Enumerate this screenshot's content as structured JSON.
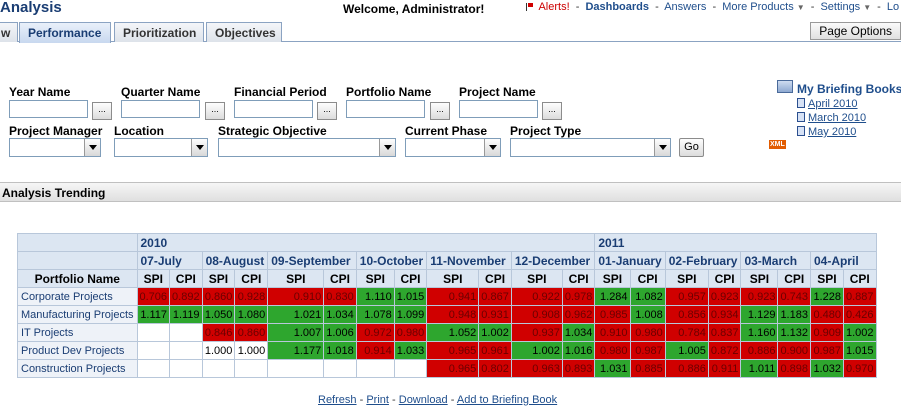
{
  "app": {
    "title": "Analysis"
  },
  "header": {
    "welcome": "Welcome, Administrator!",
    "alerts": "Alerts!",
    "dashboards": "Dashboards",
    "answers": "Answers",
    "more_products": "More Products",
    "settings": "Settings",
    "logout_partial": "Lo",
    "separator": "-"
  },
  "tabs": [
    {
      "label": "w"
    },
    {
      "label": "Performance"
    },
    {
      "label": "Prioritization"
    },
    {
      "label": "Objectives"
    }
  ],
  "page_options": "Page Options",
  "prompts": {
    "year_name": "Year Name",
    "quarter_name": "Quarter Name",
    "financial_period": "Financial Period",
    "portfolio_name": "Portfolio Name",
    "project_name": "Project Name",
    "project_manager": "Project Manager",
    "location": "Location",
    "strategic_objective": "Strategic Objective",
    "current_phase": "Current Phase",
    "project_type": "Project Type",
    "browse": "...",
    "go": "Go"
  },
  "briefing": {
    "title": "My Briefing Books",
    "items": [
      "April 2010",
      "March 2010",
      "May 2010"
    ],
    "xml_badge": "XML"
  },
  "section": {
    "title": "Analysis Trending"
  },
  "pivot": {
    "years": [
      {
        "label": "2010",
        "span": 12
      },
      {
        "label": "2011",
        "span": 8
      }
    ],
    "periods": [
      "07-July",
      "08-August",
      "09-September",
      "10-October",
      "11-November",
      "12-December",
      "01-January",
      "02-February",
      "03-March",
      "04-April"
    ],
    "measures": [
      "SPI",
      "CPI"
    ],
    "row_header": "Portfolio Name",
    "rows": [
      {
        "name": "Corporate Projects",
        "cells": [
          {
            "v": "0.706",
            "c": "red"
          },
          {
            "v": "0.892",
            "c": "red"
          },
          {
            "v": "0.860",
            "c": "red"
          },
          {
            "v": "0.928",
            "c": "red"
          },
          {
            "v": "0.910",
            "c": "red"
          },
          {
            "v": "0.830",
            "c": "red"
          },
          {
            "v": "1.110",
            "c": "green"
          },
          {
            "v": "1.015",
            "c": "green"
          },
          {
            "v": "0.941",
            "c": "red"
          },
          {
            "v": "0.867",
            "c": "red"
          },
          {
            "v": "0.922",
            "c": "red"
          },
          {
            "v": "0.978",
            "c": "red"
          },
          {
            "v": "1.284",
            "c": "green"
          },
          {
            "v": "1.082",
            "c": "green"
          },
          {
            "v": "0.957",
            "c": "red"
          },
          {
            "v": "0.923",
            "c": "red"
          },
          {
            "v": "0.923",
            "c": "red"
          },
          {
            "v": "0.743",
            "c": "red"
          },
          {
            "v": "1.228",
            "c": "green"
          },
          {
            "v": "0.887",
            "c": "red"
          }
        ]
      },
      {
        "name": "Manufacturing Projects",
        "cells": [
          {
            "v": "1.117",
            "c": "green"
          },
          {
            "v": "1.119",
            "c": "green"
          },
          {
            "v": "1.050",
            "c": "green"
          },
          {
            "v": "1.080",
            "c": "green"
          },
          {
            "v": "1.021",
            "c": "green"
          },
          {
            "v": "1.034",
            "c": "green"
          },
          {
            "v": "1.078",
            "c": "green"
          },
          {
            "v": "1.099",
            "c": "green"
          },
          {
            "v": "0.948",
            "c": "red"
          },
          {
            "v": "0.931",
            "c": "red"
          },
          {
            "v": "0.908",
            "c": "red"
          },
          {
            "v": "0.962",
            "c": "red"
          },
          {
            "v": "0.985",
            "c": "red"
          },
          {
            "v": "1.008",
            "c": "green"
          },
          {
            "v": "0.856",
            "c": "red"
          },
          {
            "v": "0.934",
            "c": "red"
          },
          {
            "v": "1.129",
            "c": "green"
          },
          {
            "v": "1.183",
            "c": "green"
          },
          {
            "v": "0.480",
            "c": "red"
          },
          {
            "v": "0.426",
            "c": "red"
          }
        ]
      },
      {
        "name": "IT Projects",
        "cells": [
          {
            "v": "",
            "c": "empty"
          },
          {
            "v": "",
            "c": "empty"
          },
          {
            "v": "0.846",
            "c": "red"
          },
          {
            "v": "0.860",
            "c": "red"
          },
          {
            "v": "1.007",
            "c": "green"
          },
          {
            "v": "1.006",
            "c": "green"
          },
          {
            "v": "0.972",
            "c": "red"
          },
          {
            "v": "0.980",
            "c": "red"
          },
          {
            "v": "1.052",
            "c": "green"
          },
          {
            "v": "1.002",
            "c": "green"
          },
          {
            "v": "0.937",
            "c": "red"
          },
          {
            "v": "1.034",
            "c": "green"
          },
          {
            "v": "0.910",
            "c": "red"
          },
          {
            "v": "0.980",
            "c": "red"
          },
          {
            "v": "0.784",
            "c": "red"
          },
          {
            "v": "0.837",
            "c": "red"
          },
          {
            "v": "1.160",
            "c": "green"
          },
          {
            "v": "1.132",
            "c": "green"
          },
          {
            "v": "0.909",
            "c": "red"
          },
          {
            "v": "1.002",
            "c": "green"
          }
        ]
      },
      {
        "name": "Product Dev Projects",
        "cells": [
          {
            "v": "",
            "c": "empty"
          },
          {
            "v": "",
            "c": "empty"
          },
          {
            "v": "1.000",
            "c": "empty"
          },
          {
            "v": "1.000",
            "c": "empty"
          },
          {
            "v": "1.177",
            "c": "green"
          },
          {
            "v": "1.018",
            "c": "green"
          },
          {
            "v": "0.914",
            "c": "red"
          },
          {
            "v": "1.033",
            "c": "green"
          },
          {
            "v": "0.965",
            "c": "red"
          },
          {
            "v": "0.961",
            "c": "red"
          },
          {
            "v": "1.002",
            "c": "green"
          },
          {
            "v": "1.016",
            "c": "green"
          },
          {
            "v": "0.980",
            "c": "red"
          },
          {
            "v": "0.987",
            "c": "red"
          },
          {
            "v": "1.005",
            "c": "green"
          },
          {
            "v": "0.872",
            "c": "red"
          },
          {
            "v": "0.886",
            "c": "red"
          },
          {
            "v": "0.900",
            "c": "red"
          },
          {
            "v": "0.987",
            "c": "red"
          },
          {
            "v": "1.015",
            "c": "green"
          }
        ]
      },
      {
        "name": "Construction Projects",
        "cells": [
          {
            "v": "",
            "c": "empty"
          },
          {
            "v": "",
            "c": "empty"
          },
          {
            "v": "",
            "c": "empty"
          },
          {
            "v": "",
            "c": "empty"
          },
          {
            "v": "",
            "c": "empty"
          },
          {
            "v": "",
            "c": "empty"
          },
          {
            "v": "",
            "c": "empty"
          },
          {
            "v": "",
            "c": "empty"
          },
          {
            "v": "0.965",
            "c": "red"
          },
          {
            "v": "0.802",
            "c": "red"
          },
          {
            "v": "0.963",
            "c": "red"
          },
          {
            "v": "0.893",
            "c": "red"
          },
          {
            "v": "1.031",
            "c": "green"
          },
          {
            "v": "0.885",
            "c": "red"
          },
          {
            "v": "0.886",
            "c": "red"
          },
          {
            "v": "0.911",
            "c": "red"
          },
          {
            "v": "1.011",
            "c": "green"
          },
          {
            "v": "0.898",
            "c": "red"
          },
          {
            "v": "1.032",
            "c": "green"
          },
          {
            "v": "0.970",
            "c": "red"
          }
        ]
      }
    ]
  },
  "footer": {
    "refresh": "Refresh",
    "print": "Print",
    "download": "Download",
    "add_to_briefing_book": "Add to Briefing Book",
    "separator": "-"
  },
  "colors": {
    "bad": "#d00000",
    "good": "#2ea62e",
    "header_bg": "#dce6f2",
    "link": "#1f4e8c"
  }
}
